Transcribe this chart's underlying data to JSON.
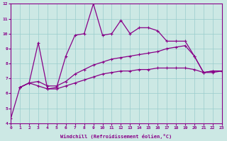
{
  "bg_color": "#cce8e4",
  "line_color": "#880088",
  "grid_color": "#99cccc",
  "xlabel": "Windchill (Refroidissement éolien,°C)",
  "xlim": [
    0,
    23
  ],
  "ylim": [
    4,
    12
  ],
  "xticks": [
    0,
    1,
    2,
    3,
    4,
    5,
    6,
    7,
    8,
    9,
    10,
    11,
    12,
    13,
    14,
    15,
    16,
    17,
    18,
    19,
    20,
    21,
    22,
    23
  ],
  "yticks": [
    4,
    5,
    6,
    7,
    8,
    9,
    10,
    11,
    12
  ],
  "line1_x": [
    0,
    1,
    2,
    3,
    4,
    5,
    6,
    7,
    8,
    9,
    10,
    11,
    12,
    13,
    14,
    15,
    16,
    17,
    18,
    19,
    20,
    21,
    22,
    23
  ],
  "line1_y": [
    4.3,
    6.4,
    6.7,
    9.4,
    6.3,
    6.4,
    8.5,
    9.9,
    10.0,
    12.0,
    9.9,
    10.0,
    10.9,
    10.0,
    10.4,
    10.4,
    10.2,
    9.5,
    9.5,
    9.5,
    8.5,
    7.4,
    7.5,
    7.5
  ],
  "line2_x": [
    1,
    2,
    3,
    4,
    5,
    6,
    7,
    8,
    9,
    10,
    11,
    12,
    13,
    14,
    15,
    16,
    17,
    18,
    19,
    20,
    21,
    22,
    23
  ],
  "line2_y": [
    6.4,
    6.7,
    6.8,
    6.5,
    6.5,
    6.8,
    7.3,
    7.6,
    7.9,
    8.1,
    8.3,
    8.4,
    8.5,
    8.6,
    8.7,
    8.8,
    9.0,
    9.1,
    9.2,
    8.5,
    7.4,
    7.5,
    7.5
  ],
  "line3_x": [
    1,
    2,
    3,
    4,
    5,
    6,
    7,
    8,
    9,
    10,
    11,
    12,
    13,
    14,
    15,
    16,
    17,
    18,
    19,
    20,
    21,
    22,
    23
  ],
  "line3_y": [
    6.4,
    6.7,
    6.5,
    6.3,
    6.3,
    6.5,
    6.7,
    6.9,
    7.1,
    7.3,
    7.4,
    7.5,
    7.5,
    7.6,
    7.6,
    7.7,
    7.7,
    7.7,
    7.7,
    7.6,
    7.4,
    7.4,
    7.5
  ]
}
